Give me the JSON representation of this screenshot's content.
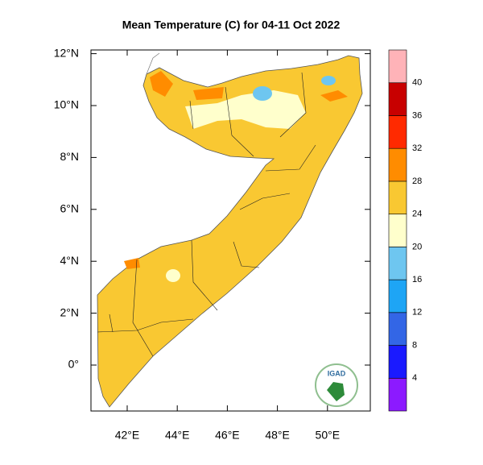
{
  "title": "Mean Temperature (C) for 04-11 Oct 2022",
  "lat_ticks": [
    {
      "value": 12,
      "label": "12°N"
    },
    {
      "value": 10,
      "label": "10°N"
    },
    {
      "value": 8,
      "label": "8°N"
    },
    {
      "value": 6,
      "label": "6°N"
    },
    {
      "value": 4,
      "label": "4°N"
    },
    {
      "value": 2,
      "label": "2°N"
    },
    {
      "value": 0,
      "label": "0°"
    }
  ],
  "lon_ticks": [
    {
      "value": 42,
      "label": "42°E"
    },
    {
      "value": 44,
      "label": "44°E"
    },
    {
      "value": 46,
      "label": "46°E"
    },
    {
      "value": 48,
      "label": "48°E"
    },
    {
      "value": 50,
      "label": "50°E"
    }
  ],
  "colorbar": {
    "levels": [
      4,
      8,
      12,
      16,
      20,
      24,
      28,
      32,
      36,
      40
    ],
    "colors": [
      "#8c1aff",
      "#1a1aff",
      "#3366e6",
      "#1ea5f5",
      "#6ec6f0",
      "#ffffcc",
      "#f9c832",
      "#ff8c00",
      "#ff2a00",
      "#c80000",
      "#ffb3b8"
    ]
  },
  "logo": "IGAD"
}
